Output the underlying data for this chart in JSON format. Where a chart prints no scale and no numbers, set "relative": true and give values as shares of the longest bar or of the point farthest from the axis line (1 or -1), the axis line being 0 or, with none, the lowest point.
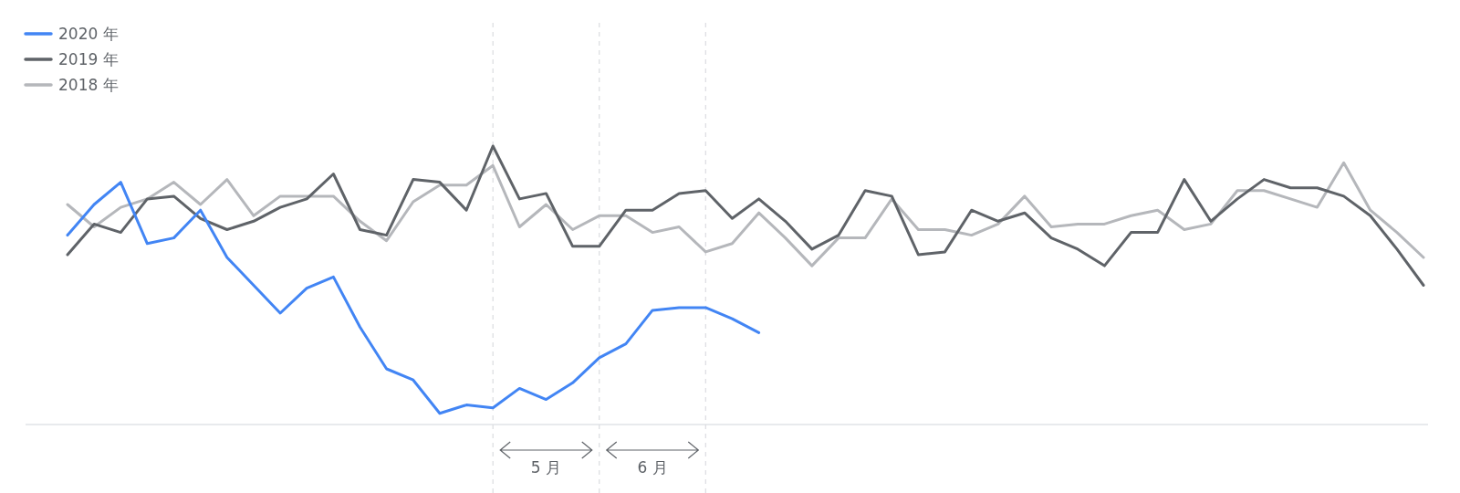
{
  "chart_data": {
    "type": "line",
    "relative": true,
    "categories": [
      null,
      null,
      null,
      null,
      null,
      null,
      null,
      null,
      null,
      null,
      null,
      null,
      null,
      null,
      null,
      null,
      null,
      null,
      null,
      null,
      null,
      null,
      null,
      null,
      null,
      null,
      null,
      null,
      null,
      null,
      null,
      null,
      null,
      null,
      null,
      null,
      null,
      null,
      null,
      null,
      null,
      null,
      null,
      null,
      null,
      null,
      null,
      null,
      null,
      null,
      null,
      null
    ],
    "legend": "top left",
    "grid": "x",
    "line_style": "solid",
    "marker": "none",
    "series": [
      {
        "name": "2020 年",
        "color": "#4285f4",
        "values": [
          0.68,
          0.79,
          0.87,
          0.65,
          0.67,
          0.77,
          0.6,
          0.5,
          0.4,
          0.49,
          0.53,
          0.35,
          0.2,
          0.16,
          0.04,
          0.07,
          0.06,
          0.13,
          0.09,
          0.15,
          0.24,
          0.29,
          0.41,
          0.42,
          0.42,
          0.38,
          0.33,
          null,
          null,
          null,
          null,
          null,
          null,
          null,
          null,
          null,
          null,
          null,
          null,
          null,
          null,
          null,
          null,
          null,
          null,
          null,
          null,
          null,
          null,
          null,
          null,
          null
        ]
      },
      {
        "name": "2019 年",
        "color": "#5f6368",
        "values": [
          0.61,
          0.72,
          0.69,
          0.81,
          0.82,
          0.74,
          0.7,
          0.73,
          0.78,
          0.81,
          0.9,
          0.7,
          0.68,
          0.88,
          0.87,
          0.77,
          1.0,
          0.81,
          0.83,
          0.64,
          0.64,
          0.77,
          0.77,
          0.83,
          0.84,
          0.74,
          0.81,
          0.73,
          0.63,
          0.68,
          0.84,
          0.82,
          0.61,
          0.62,
          0.77,
          0.73,
          0.76,
          0.67,
          0.63,
          0.57,
          0.69,
          0.69,
          0.88,
          0.73,
          0.81,
          0.88,
          0.85,
          0.85,
          0.82,
          0.75,
          0.63,
          0.5
        ]
      },
      {
        "name": "2018 年",
        "color": "#b5b7bb",
        "values": [
          0.79,
          0.71,
          0.78,
          0.81,
          0.87,
          0.79,
          0.88,
          0.75,
          0.82,
          0.82,
          0.82,
          0.73,
          0.66,
          0.8,
          0.86,
          0.86,
          0.93,
          0.71,
          0.79,
          0.7,
          0.75,
          0.75,
          0.69,
          0.71,
          0.62,
          0.65,
          0.76,
          0.67,
          0.57,
          0.67,
          0.67,
          0.81,
          0.7,
          0.7,
          0.68,
          0.72,
          0.82,
          0.71,
          0.72,
          0.72,
          0.75,
          0.77,
          0.7,
          0.72,
          0.84,
          0.84,
          0.81,
          0.78,
          0.94,
          0.77,
          0.69,
          0.6
        ]
      }
    ],
    "annotations": [
      "5 月",
      "6 月"
    ]
  }
}
